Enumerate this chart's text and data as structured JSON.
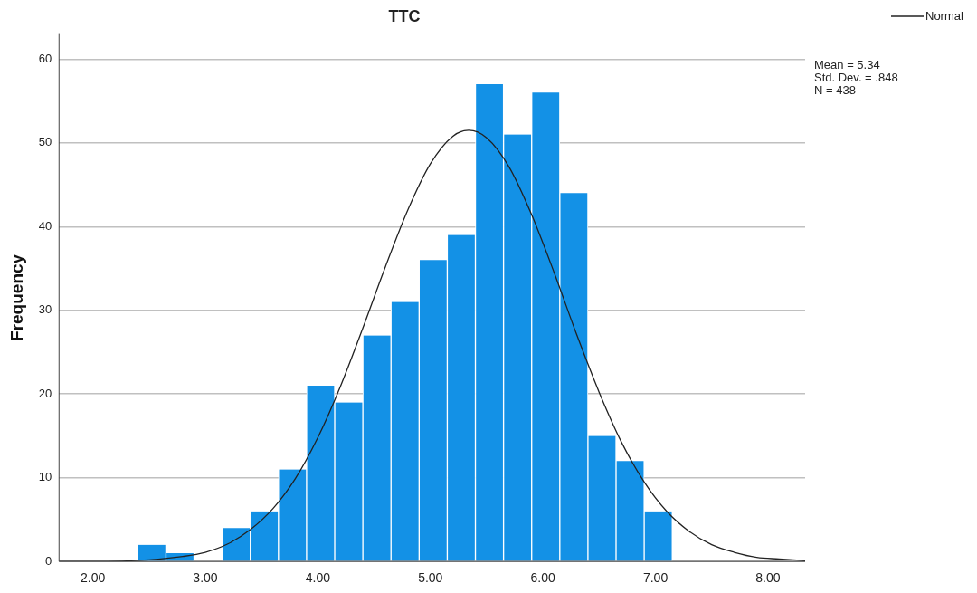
{
  "chart_data": {
    "type": "histogram",
    "title": "TTC",
    "ylabel": "Frequency",
    "bins": [
      2.4,
      2.65,
      2.9,
      3.15,
      3.4,
      3.65,
      3.9,
      4.15,
      4.4,
      4.65,
      4.9,
      5.15,
      5.4,
      5.65,
      5.9,
      6.15,
      6.4,
      6.65,
      6.9,
      7.15
    ],
    "values": [
      2,
      1,
      0,
      4,
      6,
      11,
      21,
      19,
      27,
      31,
      36,
      39,
      57,
      51,
      56,
      44,
      15,
      12,
      6
    ],
    "color": "#1391e6",
    "series": [
      {
        "name": "Normal",
        "type": "line",
        "color": "#222222",
        "x": [
          1.7,
          2.0,
          2.5,
          2.8,
          3.0,
          3.2,
          3.4,
          3.6,
          3.8,
          4.0,
          4.2,
          4.4,
          4.6,
          4.8,
          5.0,
          5.2,
          5.34,
          5.5,
          5.7,
          5.9,
          6.1,
          6.3,
          6.5,
          6.7,
          6.9,
          7.1,
          7.3,
          7.5,
          7.7,
          7.9,
          8.1,
          8.33
        ],
        "values": [
          0,
          0,
          0.2,
          0.6,
          1.1,
          2.1,
          3.8,
          6.3,
          9.9,
          14.8,
          20.9,
          27.9,
          35.2,
          42.0,
          47.5,
          50.8,
          51.5,
          50.6,
          47.1,
          41.4,
          34.5,
          27.1,
          20.2,
          14.2,
          9.5,
          6.0,
          3.6,
          2.0,
          1.1,
          0.5,
          0.3,
          0.1
        ]
      }
    ],
    "xlim": [
      1.7,
      8.33
    ],
    "ylim": [
      0,
      63
    ],
    "xticks": [
      {
        "value": 2,
        "label": "2.00"
      },
      {
        "value": 3,
        "label": "3.00"
      },
      {
        "value": 4,
        "label": "4.00"
      },
      {
        "value": 5,
        "label": "5.00"
      },
      {
        "value": 6,
        "label": "6.00"
      },
      {
        "value": 7,
        "label": "7.00"
      },
      {
        "value": 8,
        "label": "8.00"
      }
    ],
    "yticks": [
      0,
      10,
      20,
      30,
      40,
      50,
      60
    ],
    "grid": "y",
    "legend": "top right",
    "marker": "none",
    "line_style": "solid",
    "annotations": [
      "Mean = 5.34",
      "Std. Dev. = .848",
      "N = 438"
    ]
  }
}
